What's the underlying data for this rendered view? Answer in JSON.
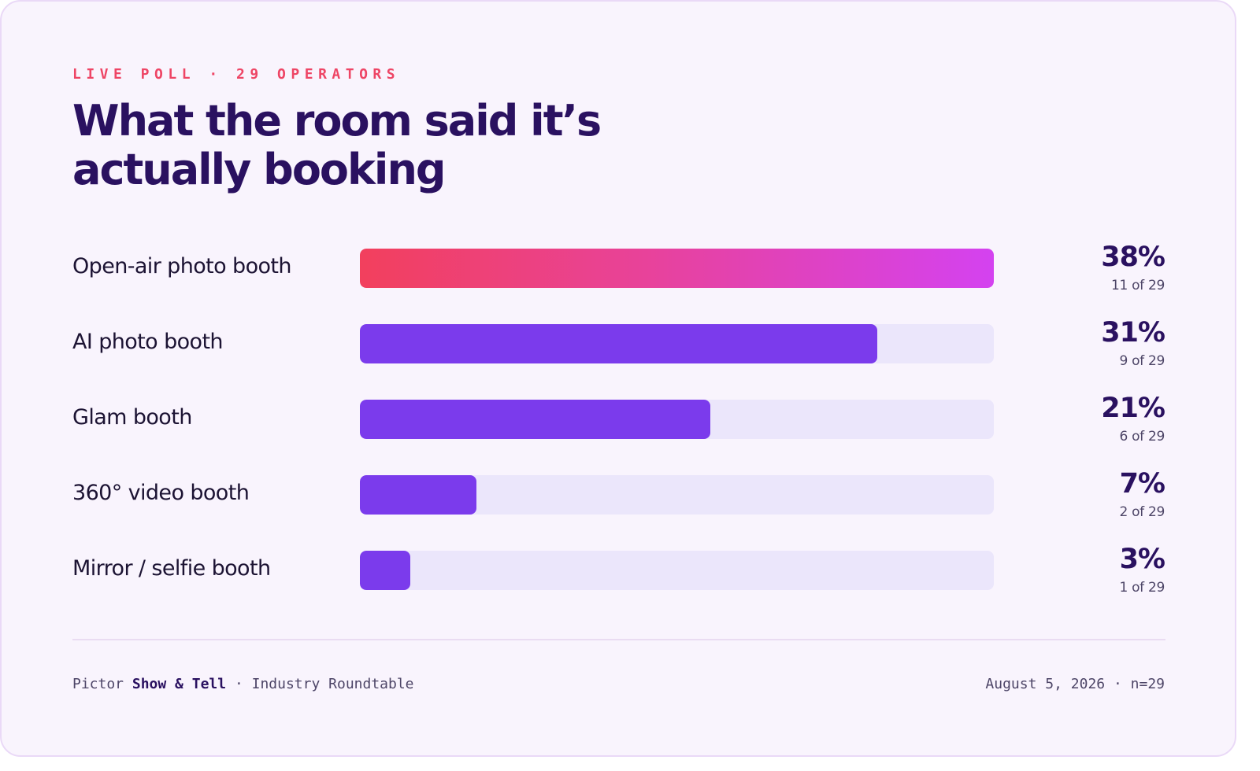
{
  "eyebrow": "LIVE POLL · 29 OPERATORS",
  "title_lines": [
    "What the room said it’s",
    "actually booking"
  ],
  "chart_data": {
    "type": "bar",
    "orientation": "horizontal",
    "categories": [
      "Open-air photo booth",
      "AI photo booth",
      "Glam booth",
      "360° video booth",
      "Mirror / selfie booth"
    ],
    "values": [
      38,
      31,
      21,
      7,
      3
    ],
    "percent_labels": [
      "38%",
      "31%",
      "21%",
      "7%",
      "3%"
    ],
    "count_labels": [
      "11 of 29",
      "9 of 29",
      "6 of 29",
      "2 of 29",
      "1 of 29"
    ],
    "xlim": [
      0,
      38
    ],
    "grid": false,
    "colors": {
      "lead_gradient": [
        "#f2405d",
        "#d442f0"
      ],
      "bar": "#7b3bec",
      "track": "#ebe6fb"
    }
  },
  "footer": {
    "brand_prefix": "Pictor",
    "brand_name": "Show & Tell",
    "event": "· Industry Roundtable",
    "right": "August 5, 2026 · n=29"
  },
  "colors": {
    "accent": "#ee4565",
    "heading": "#2a1160",
    "background": "#f9f4fd"
  }
}
